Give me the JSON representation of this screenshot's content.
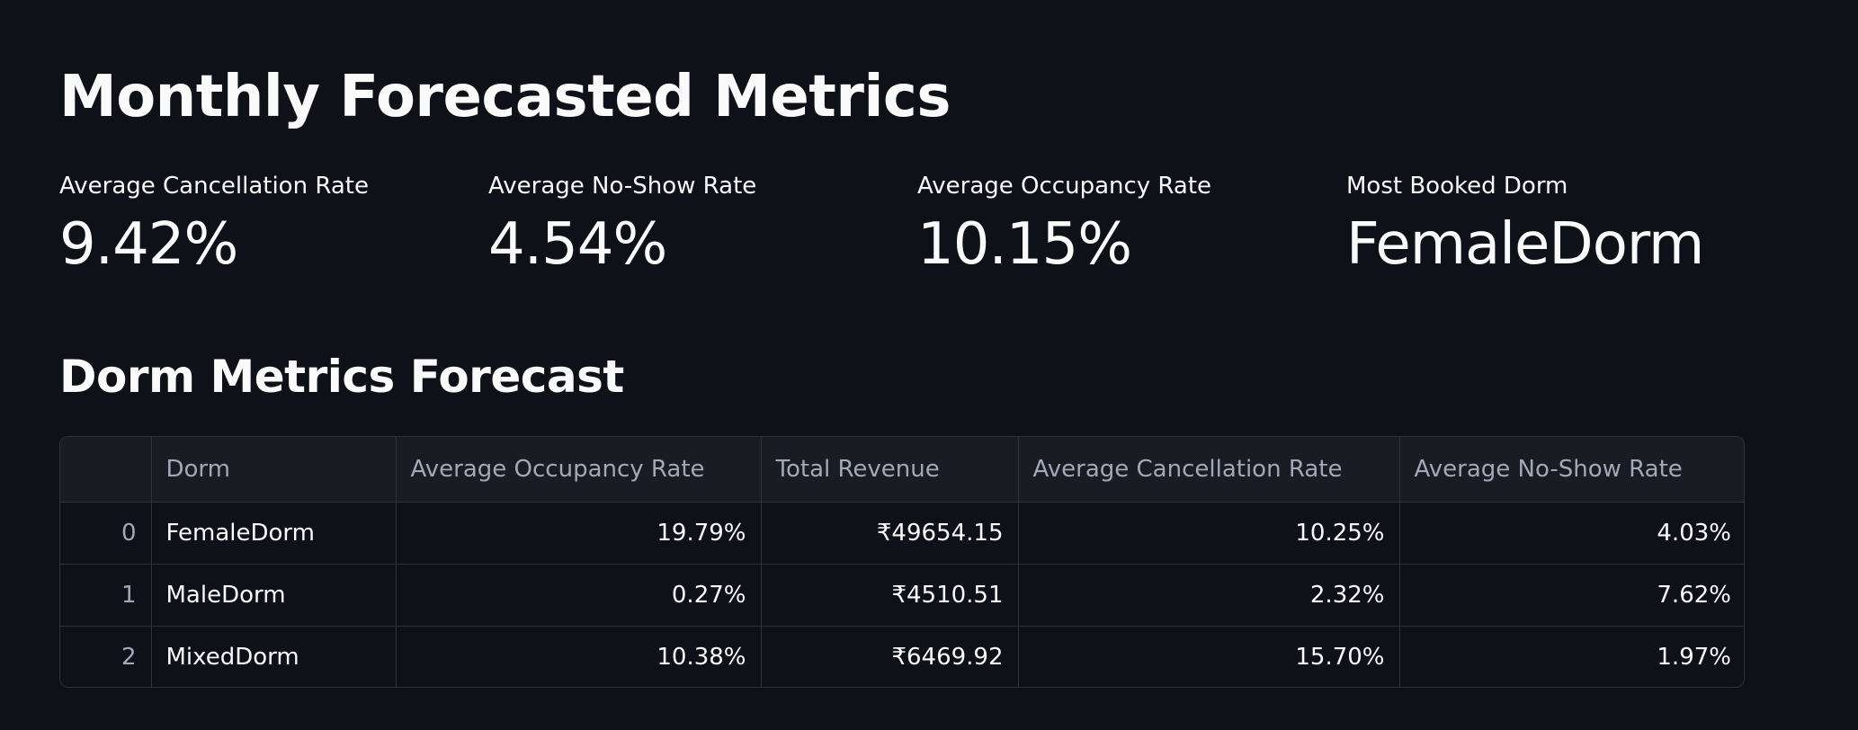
{
  "header": {
    "title": "Monthly Forecasted Metrics"
  },
  "metrics": [
    {
      "label": "Average Cancellation Rate",
      "value": "9.42%"
    },
    {
      "label": "Average No-Show Rate",
      "value": "4.54%"
    },
    {
      "label": "Average Occupancy Rate",
      "value": "10.15%"
    },
    {
      "label": "Most Booked Dorm",
      "value": "FemaleDorm"
    }
  ],
  "section": {
    "title": "Dorm Metrics Forecast"
  },
  "table": {
    "columns": [
      "",
      "Dorm",
      "Average Occupancy Rate",
      "Total Revenue",
      "Average Cancellation Rate",
      "Average No-Show Rate"
    ],
    "rows": [
      [
        "0",
        "FemaleDorm",
        "19.79%",
        "₹49654.15",
        "10.25%",
        "4.03%"
      ],
      [
        "1",
        "MaleDorm",
        "0.27%",
        "₹4510.51",
        "2.32%",
        "7.62%"
      ],
      [
        "2",
        "MixedDorm",
        "10.38%",
        "₹6469.92",
        "15.70%",
        "1.97%"
      ]
    ]
  },
  "colors": {
    "background": "#0e1117",
    "text": "#fafafa",
    "muted_text": "#a3a8b8",
    "table_header_bg": "#1a1c24",
    "border": "#2f323b"
  }
}
